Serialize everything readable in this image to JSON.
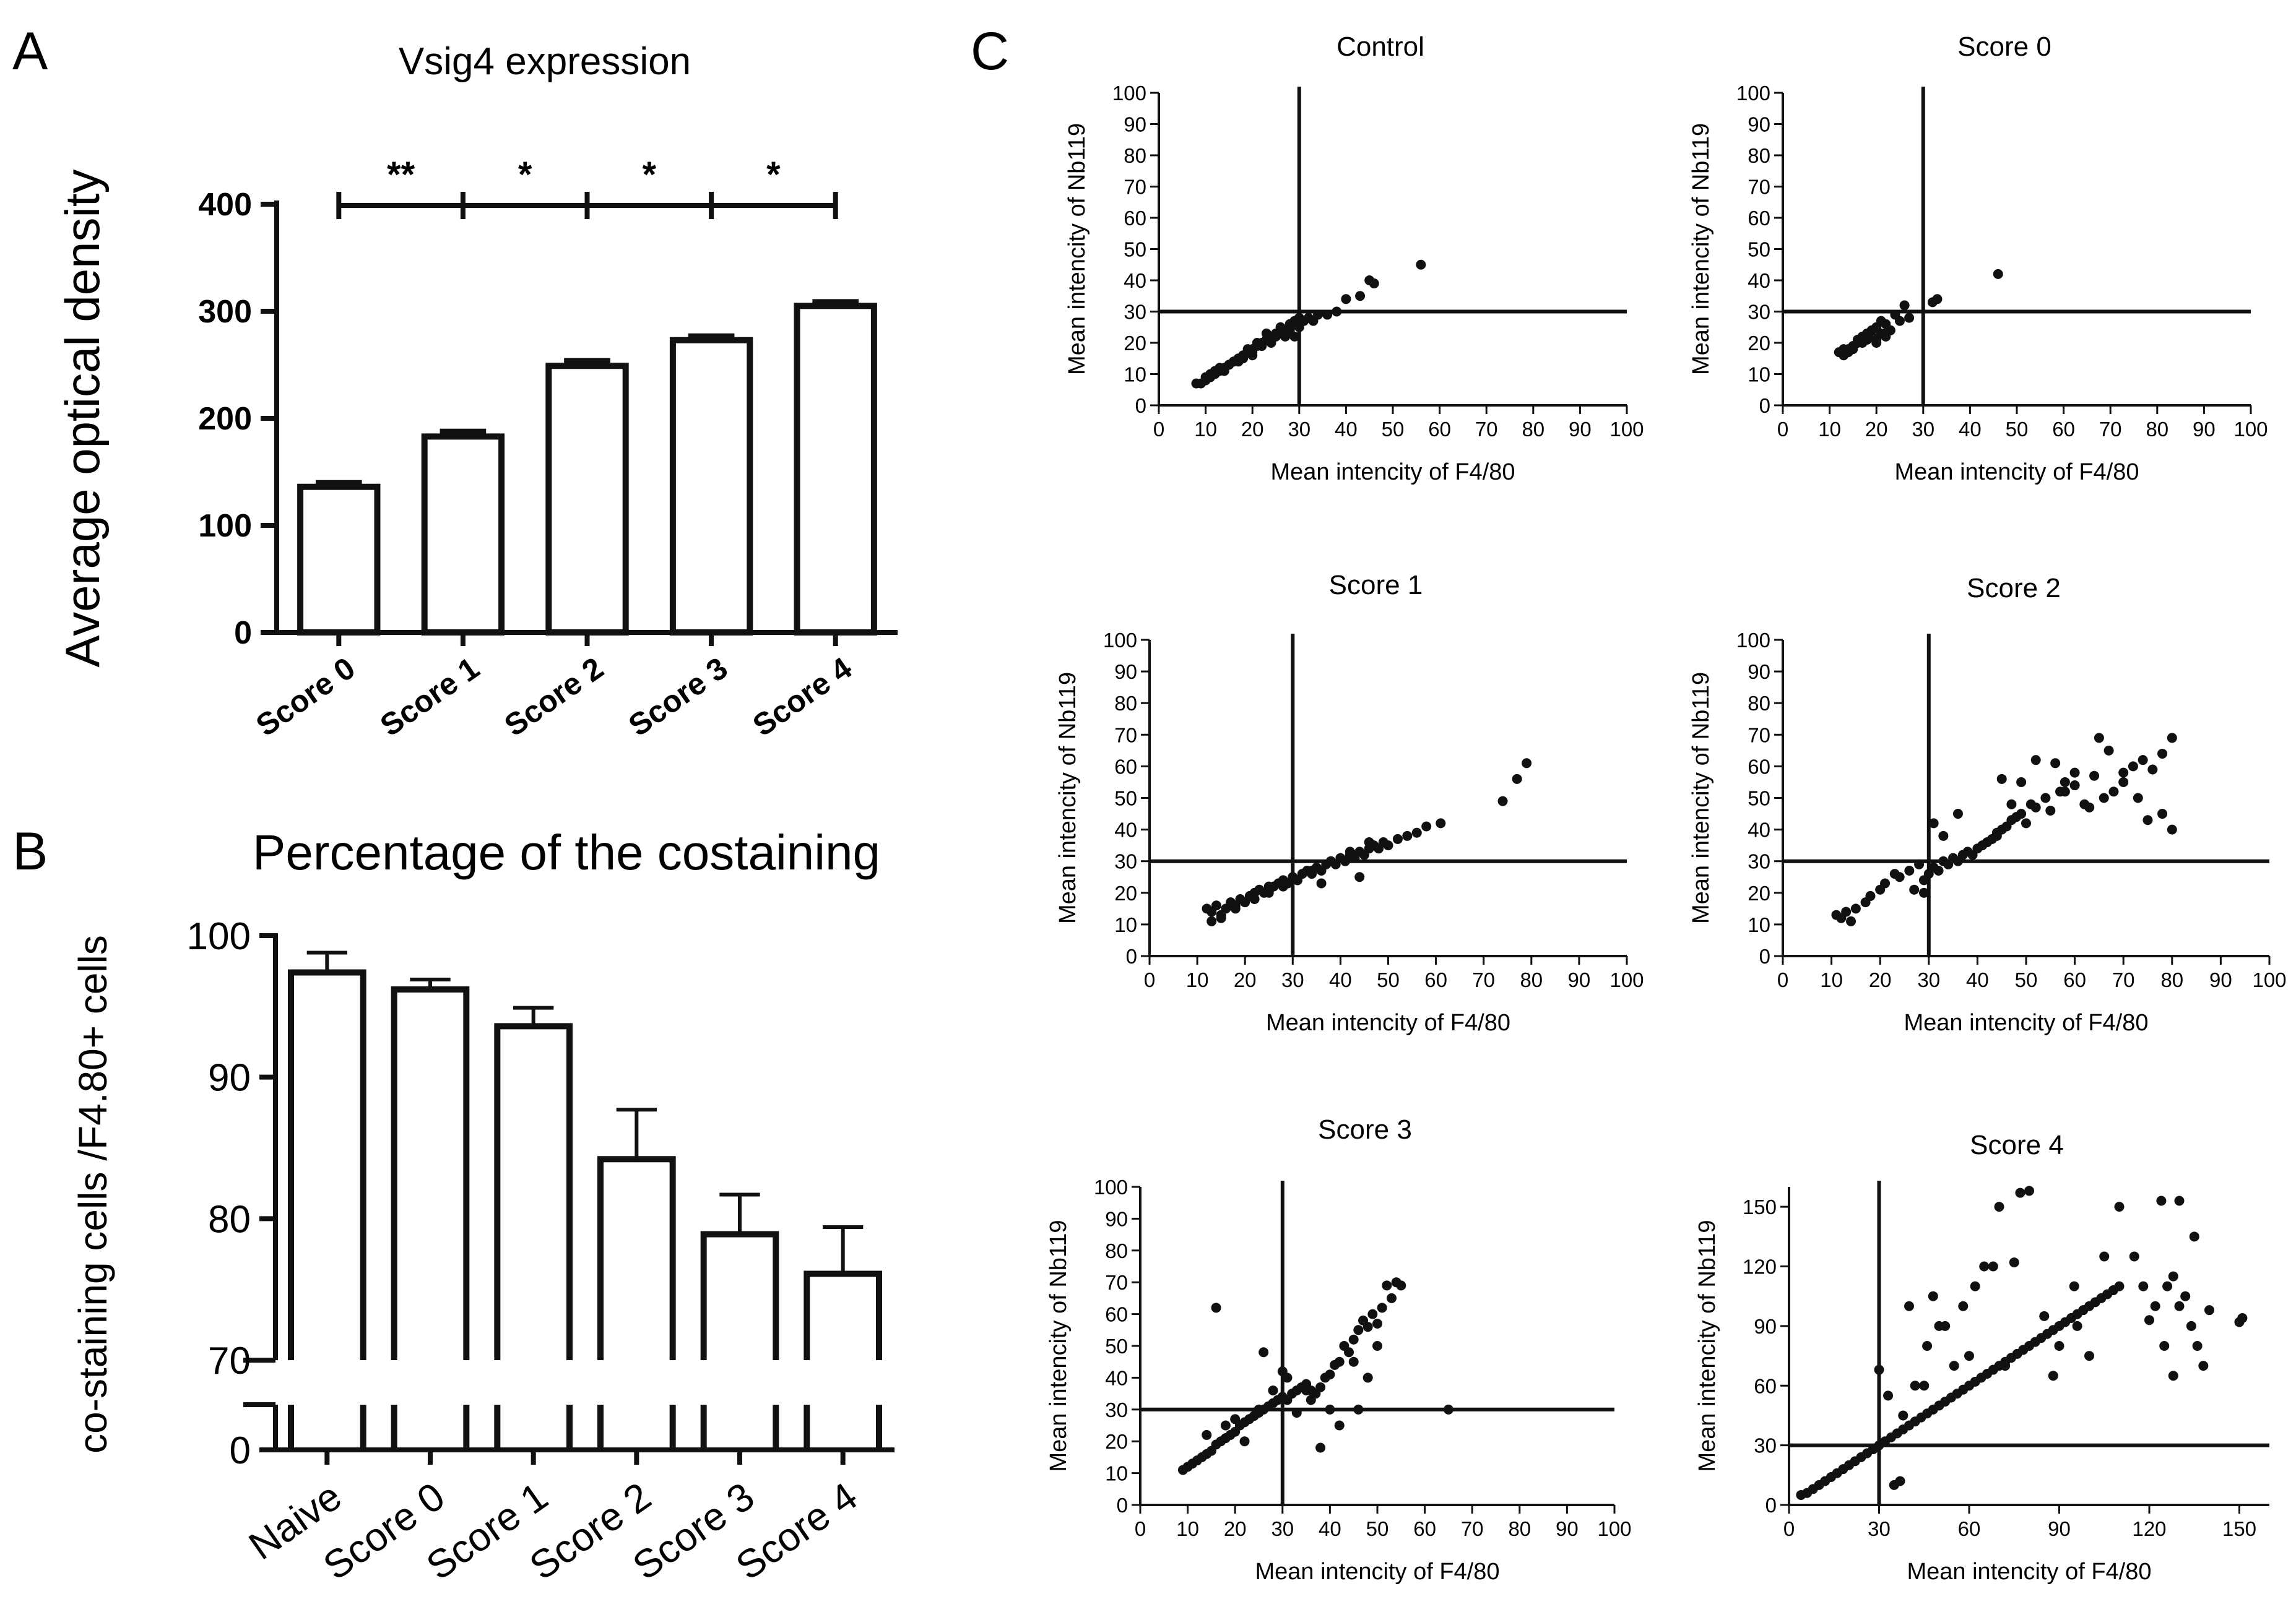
{
  "colors": {
    "ink": "#111111",
    "background": "#ffffff"
  },
  "panel_letters": {
    "a": "A",
    "b": "B",
    "c": "C"
  },
  "chart_data": [
    {
      "id": "A",
      "type": "bar",
      "title": "Vsig4 expression",
      "ylabel": "Average optical density",
      "xlabel": "",
      "categories": [
        "Score 0",
        "Score 1",
        "Score 2",
        "Score 3",
        "Score 4"
      ],
      "values": [
        136,
        183,
        249,
        273,
        305
      ],
      "errors": [
        4,
        5,
        5,
        4,
        4
      ],
      "ylim": [
        0,
        400
      ],
      "yticks": [
        "0",
        "100",
        "200",
        "300",
        "400"
      ],
      "significance": [
        "**",
        "*",
        "*",
        "*"
      ]
    },
    {
      "id": "B",
      "type": "bar",
      "title": "Percentage of the costaining",
      "ylabel": "co-staining cells /F4.80+ cells",
      "xlabel": "",
      "categories": [
        "Naive",
        "Score 0",
        "Score 1",
        "Score 2",
        "Score 3",
        "Score 4"
      ],
      "values": [
        97.4,
        96.2,
        93.6,
        84.2,
        78.9,
        76.1
      ],
      "errors": [
        1.4,
        0.7,
        1.3,
        3.5,
        2.8,
        3.3
      ],
      "ylim": [
        70,
        100
      ],
      "broken_axis": true,
      "yticks": [
        "70",
        "80",
        "90",
        "100"
      ],
      "lower_ticks": [
        "0"
      ]
    },
    {
      "id": "C-control",
      "type": "scatter",
      "title": "Control",
      "xlabel": "Mean intencity of F4/80",
      "ylabel": "Mean intencity of Nb119",
      "xlim": [
        0,
        100
      ],
      "ylim": [
        0,
        100
      ],
      "threshold": 30,
      "xticks": [
        "0",
        "10",
        "20",
        "30",
        "40",
        "50",
        "60",
        "70",
        "80",
        "90",
        "100"
      ],
      "yticks": [
        "0",
        "10",
        "20",
        "30",
        "40",
        "50",
        "60",
        "70",
        "80",
        "90",
        "100"
      ],
      "x": [
        8,
        9,
        10,
        10,
        11,
        12,
        12,
        13,
        14,
        15,
        15,
        16,
        17,
        18,
        18,
        19,
        20,
        20,
        21,
        22,
        22,
        23,
        24,
        25,
        25,
        26,
        27,
        28,
        28,
        29,
        29,
        30,
        11,
        13,
        16,
        19,
        21,
        23,
        26,
        28,
        30,
        31,
        33,
        36,
        38,
        40,
        43,
        45,
        46,
        56,
        14,
        17,
        20,
        24,
        27,
        29,
        32,
        34
      ],
      "y": [
        7,
        7,
        8,
        9,
        9,
        10,
        11,
        11,
        12,
        13,
        13,
        14,
        15,
        15,
        16,
        17,
        17,
        18,
        19,
        19,
        20,
        21,
        21,
        22,
        23,
        23,
        24,
        24,
        25,
        26,
        27,
        28,
        10,
        12,
        14,
        18,
        20,
        23,
        25,
        26,
        25,
        27,
        27,
        29,
        30,
        34,
        35,
        40,
        39,
        45,
        11,
        14,
        16,
        20,
        22,
        22,
        28,
        29
      ]
    },
    {
      "id": "C-score0",
      "type": "scatter",
      "title": "Score 0",
      "xlabel": "Mean intencity of F4/80",
      "ylabel": "Mean intencity of Nb119",
      "xlim": [
        0,
        100
      ],
      "ylim": [
        0,
        100
      ],
      "threshold": 30,
      "xticks": [
        "0",
        "10",
        "20",
        "30",
        "40",
        "50",
        "60",
        "70",
        "80",
        "90",
        "100"
      ],
      "yticks": [
        "0",
        "10",
        "20",
        "30",
        "40",
        "50",
        "60",
        "70",
        "80",
        "90",
        "100"
      ],
      "x": [
        12,
        13,
        13,
        14,
        15,
        15,
        16,
        17,
        17,
        18,
        18,
        19,
        19,
        20,
        20,
        21,
        21,
        22,
        22,
        23,
        24,
        25,
        26,
        27,
        32,
        33,
        46,
        14,
        16,
        18,
        20,
        22
      ],
      "y": [
        17,
        16,
        18,
        17,
        19,
        18,
        20,
        20,
        22,
        21,
        23,
        22,
        24,
        21,
        25,
        23,
        27,
        22,
        26,
        24,
        29,
        27,
        32,
        28,
        33,
        34,
        42,
        18,
        21,
        22,
        20,
        23
      ]
    },
    {
      "id": "C-score1",
      "type": "scatter",
      "title": "Score 1",
      "xlabel": "Mean intencity of F4/80",
      "ylabel": "Mean intencity of Nb119",
      "xlim": [
        0,
        100
      ],
      "ylim": [
        0,
        100
      ],
      "threshold": 30,
      "xticks": [
        "0",
        "10",
        "20",
        "30",
        "40",
        "50",
        "60",
        "70",
        "80",
        "90",
        "100"
      ],
      "yticks": [
        "0",
        "10",
        "20",
        "30",
        "40",
        "50",
        "60",
        "70",
        "80",
        "90",
        "100"
      ],
      "x": [
        12,
        13,
        14,
        15,
        16,
        17,
        18,
        19,
        20,
        21,
        22,
        23,
        24,
        25,
        26,
        27,
        28,
        29,
        30,
        31,
        32,
        33,
        34,
        35,
        36,
        37,
        38,
        39,
        40,
        41,
        42,
        43,
        44,
        45,
        46,
        47,
        48,
        49,
        50,
        52,
        54,
        56,
        58,
        61,
        74,
        77,
        79,
        13,
        15,
        18,
        22,
        25,
        28,
        31,
        34,
        38,
        42,
        46,
        44,
        36
      ],
      "y": [
        15,
        14,
        16,
        13,
        15,
        17,
        16,
        18,
        17,
        19,
        20,
        21,
        20,
        22,
        22,
        23,
        24,
        23,
        25,
        24,
        26,
        27,
        26,
        28,
        27,
        29,
        30,
        29,
        31,
        30,
        32,
        31,
        33,
        32,
        34,
        35,
        34,
        36,
        35,
        37,
        38,
        39,
        41,
        42,
        49,
        56,
        61,
        11,
        12,
        15,
        18,
        20,
        22,
        24,
        27,
        30,
        33,
        36,
        25,
        23
      ]
    },
    {
      "id": "C-score2",
      "type": "scatter",
      "title": "Score 2",
      "xlabel": "Mean intencity of F4/80",
      "ylabel": "Mean intencity of Nb119",
      "xlim": [
        0,
        100
      ],
      "ylim": [
        0,
        100
      ],
      "threshold": 30,
      "xticks": [
        "0",
        "10",
        "20",
        "30",
        "40",
        "50",
        "60",
        "70",
        "80",
        "90",
        "100"
      ],
      "yticks": [
        "0",
        "10",
        "20",
        "30",
        "40",
        "50",
        "60",
        "70",
        "80",
        "90",
        "100"
      ],
      "x": [
        11,
        12,
        13,
        14,
        15,
        17,
        18,
        20,
        21,
        23,
        24,
        26,
        28,
        29,
        30,
        31,
        32,
        33,
        34,
        35,
        36,
        37,
        38,
        39,
        40,
        41,
        42,
        43,
        44,
        45,
        46,
        47,
        48,
        49,
        50,
        51,
        52,
        54,
        55,
        57,
        58,
        60,
        62,
        64,
        66,
        68,
        70,
        72,
        74,
        75,
        76,
        78,
        80,
        80,
        31,
        33,
        36,
        45,
        47,
        52,
        56,
        60,
        65,
        70,
        73,
        78,
        44,
        49,
        58,
        63,
        67,
        29,
        27
      ],
      "y": [
        13,
        12,
        14,
        11,
        15,
        17,
        19,
        21,
        23,
        26,
        25,
        27,
        29,
        24,
        26,
        28,
        27,
        30,
        29,
        31,
        30,
        32,
        33,
        32,
        34,
        35,
        36,
        37,
        38,
        40,
        41,
        43,
        44,
        45,
        42,
        48,
        47,
        50,
        46,
        52,
        55,
        54,
        48,
        57,
        50,
        52,
        58,
        60,
        62,
        43,
        59,
        64,
        40,
        69,
        42,
        38,
        45,
        56,
        48,
        62,
        61,
        58,
        69,
        55,
        50,
        45,
        39,
        55,
        52,
        47,
        65,
        20,
        21
      ]
    },
    {
      "id": "C-score3",
      "type": "scatter",
      "title": "Score 3",
      "xlabel": "Mean intencity of F4/80",
      "ylabel": "Mean intencity of Nb119",
      "xlim": [
        0,
        100
      ],
      "ylim": [
        0,
        100
      ],
      "threshold": 30,
      "xticks": [
        "0",
        "10",
        "20",
        "30",
        "40",
        "50",
        "60",
        "70",
        "80",
        "90",
        "100"
      ],
      "yticks": [
        "0",
        "10",
        "20",
        "30",
        "40",
        "50",
        "60",
        "70",
        "80",
        "90",
        "100"
      ],
      "x": [
        9,
        10,
        11,
        12,
        13,
        14,
        15,
        16,
        17,
        18,
        19,
        20,
        21,
        22,
        23,
        24,
        25,
        26,
        27,
        28,
        29,
        30,
        31,
        32,
        33,
        34,
        35,
        36,
        37,
        38,
        39,
        40,
        41,
        42,
        43,
        44,
        45,
        46,
        47,
        48,
        49,
        50,
        51,
        52,
        53,
        54,
        55,
        16,
        18,
        22,
        26,
        30,
        33,
        36,
        40,
        45,
        48,
        50,
        65,
        38,
        42,
        46,
        14,
        20,
        25,
        28,
        31,
        35
      ],
      "y": [
        11,
        12,
        13,
        14,
        15,
        16,
        17,
        19,
        20,
        21,
        22,
        23,
        25,
        26,
        27,
        28,
        29,
        30,
        31,
        32,
        33,
        34,
        33,
        35,
        36,
        37,
        38,
        36,
        35,
        37,
        40,
        41,
        44,
        45,
        50,
        48,
        52,
        55,
        58,
        56,
        60,
        57,
        62,
        69,
        65,
        70,
        69,
        62,
        25,
        20,
        48,
        42,
        29,
        33,
        30,
        45,
        40,
        50,
        30,
        18,
        25,
        30,
        22,
        27,
        30,
        36,
        40,
        36
      ]
    },
    {
      "id": "C-score4",
      "type": "scatter",
      "title": "Score 4",
      "xlabel": "Mean intencity of F4/80",
      "ylabel": "Mean intencity of Nb119",
      "xlim": [
        0,
        160
      ],
      "ylim": [
        0,
        160
      ],
      "threshold": 30,
      "xticks": [
        "0",
        "30",
        "60",
        "90",
        "120",
        "150"
      ],
      "yticks": [
        "0",
        "30",
        "60",
        "90",
        "120",
        "150"
      ],
      "x": [
        4,
        6,
        8,
        10,
        12,
        14,
        16,
        18,
        20,
        22,
        24,
        26,
        28,
        30,
        32,
        34,
        36,
        38,
        40,
        42,
        44,
        46,
        48,
        50,
        52,
        54,
        56,
        58,
        60,
        62,
        64,
        66,
        68,
        70,
        72,
        74,
        76,
        78,
        80,
        82,
        84,
        86,
        88,
        90,
        92,
        94,
        96,
        98,
        100,
        102,
        104,
        106,
        108,
        110,
        120,
        122,
        124,
        126,
        128,
        130,
        132,
        134,
        136,
        138,
        140,
        150,
        151,
        35,
        37,
        40,
        48,
        55,
        65,
        70,
        75,
        77,
        80,
        90,
        95,
        100,
        105,
        110,
        125,
        128,
        130,
        135,
        45,
        50,
        60,
        30,
        33,
        38,
        42,
        46,
        52,
        58,
        62,
        68,
        72,
        85,
        88,
        96,
        115,
        118
      ],
      "y": [
        5,
        6,
        8,
        10,
        12,
        14,
        16,
        18,
        20,
        22,
        24,
        26,
        28,
        30,
        32,
        34,
        36,
        38,
        40,
        42,
        44,
        46,
        48,
        50,
        52,
        54,
        56,
        58,
        60,
        62,
        64,
        66,
        68,
        70,
        72,
        74,
        76,
        78,
        80,
        82,
        84,
        86,
        88,
        90,
        92,
        94,
        96,
        98,
        100,
        102,
        104,
        106,
        108,
        110,
        93,
        100,
        153,
        110,
        65,
        153,
        105,
        90,
        80,
        70,
        98,
        92,
        94,
        10,
        12,
        100,
        105,
        70,
        120,
        150,
        122,
        157,
        158,
        80,
        110,
        75,
        125,
        150,
        80,
        115,
        100,
        135,
        60,
        90,
        75,
        68,
        55,
        45,
        60,
        80,
        90,
        100,
        110,
        120,
        70,
        95,
        65,
        90,
        125,
        110
      ]
    }
  ]
}
